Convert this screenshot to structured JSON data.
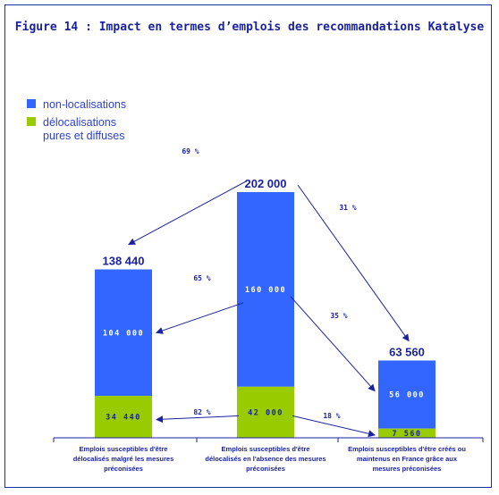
{
  "figure": {
    "title": "Figure 14 : Impact en termes d’emplois des recommandations Katalyse"
  },
  "colors": {
    "blue": "#3366ff",
    "green": "#99cc00",
    "frame": "#1c2ea8",
    "text": "#1a22a0"
  },
  "legend": [
    {
      "label": "non-localisations",
      "color": "#3366ff"
    },
    {
      "label": "délocalisations\npures et diffuses",
      "color": "#99cc00"
    }
  ],
  "chart_data": {
    "type": "bar",
    "stacked": true,
    "categories": [
      "Emplois susceptibles d'être délocalisés malgré les mesures préconisées",
      "Emplois susceptibles d'être délocalisés en l'absence des mesures préconisées",
      "Emplois susceptibles d'être créés ou maintenus en France grâce aux mesures préconisées"
    ],
    "category_lines": [
      [
        "Emplois susceptibles d'être",
        "délocalisés malgré les mesures",
        "préconisées"
      ],
      [
        "Emplois susceptibles d'être",
        "délocalisés en l'absence des mesures",
        "préconisées"
      ],
      [
        "Emplois susceptibles d'être créés ou",
        "maintenus en France grâce aux",
        "mesures préconisées"
      ]
    ],
    "series": [
      {
        "name": "non-localisations",
        "values": [
          104000,
          160000,
          56000
        ],
        "labels": [
          "104 000",
          "160 000",
          "56 000"
        ]
      },
      {
        "name": "délocalisations pures et diffuses",
        "values": [
          34440,
          42000,
          7560
        ],
        "labels": [
          "34 440",
          "42 000",
          "7 560"
        ]
      }
    ],
    "totals": [
      138440,
      202000,
      63560
    ],
    "total_labels": [
      "138 440",
      "202 000",
      "63 560"
    ],
    "flows": [
      {
        "from": "total-1",
        "to": "total-0",
        "label": "69 %"
      },
      {
        "from": "total-1",
        "to": "total-2",
        "label": "31 %"
      },
      {
        "from": "series0-1",
        "to": "series0-0",
        "label": "65 %"
      },
      {
        "from": "series0-1",
        "to": "series0-2",
        "label": "35 %"
      },
      {
        "from": "series1-1",
        "to": "series1-0",
        "label": "82 %"
      },
      {
        "from": "series1-1",
        "to": "series1-2",
        "label": "18 %"
      }
    ]
  }
}
